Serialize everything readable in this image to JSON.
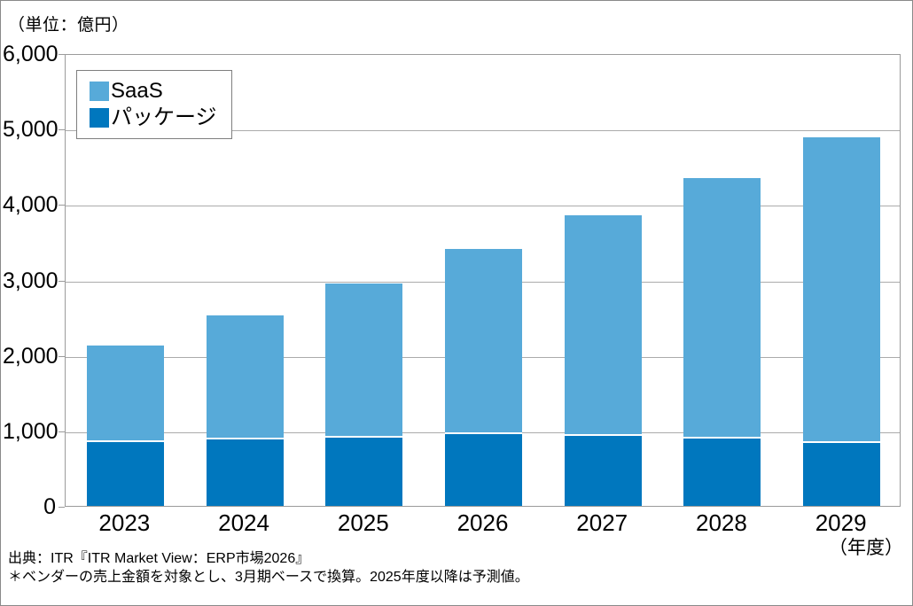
{
  "unit_label": "（単位：億円）",
  "chart_data": {
    "type": "bar",
    "stacked": true,
    "title": "",
    "categories": [
      "2023",
      "2024",
      "2025",
      "2026",
      "2027",
      "2028",
      "2029"
    ],
    "series": [
      {
        "name": "SaaS",
        "color": "#57AAD9",
        "values": [
          1260,
          1630,
          2020,
          2430,
          2900,
          3420,
          4030
        ]
      },
      {
        "name": "パッケージ",
        "color": "#0077BE",
        "values": [
          870,
          900,
          930,
          970,
          950,
          920,
          860
        ]
      }
    ],
    "stack_order_bottom_to_top": [
      "パッケージ",
      "SaaS"
    ],
    "totals": [
      2130,
      2530,
      2950,
      3400,
      3850,
      4340,
      4890
    ],
    "ylim": [
      0,
      6000
    ],
    "ytick_step": 1000,
    "ytick_labels": [
      "0",
      "1,000",
      "2,000",
      "3,000",
      "4,000",
      "5,000",
      "6,000"
    ],
    "x_axis_suffix": "（年度）",
    "legend": {
      "position": "top-left",
      "entries": [
        "SaaS",
        "パッケージ"
      ]
    },
    "grid": true,
    "colors": {
      "grid": "#ababab",
      "frame": "#9b9b9b",
      "text": "#000000"
    }
  },
  "footer": {
    "source_line": "出典：ITR『ITR Market View：ERP市場2026』",
    "note_line": "＊ベンダーの売上金額を対象とし、3月期ベースで換算。2025年度以降は予測値。"
  }
}
